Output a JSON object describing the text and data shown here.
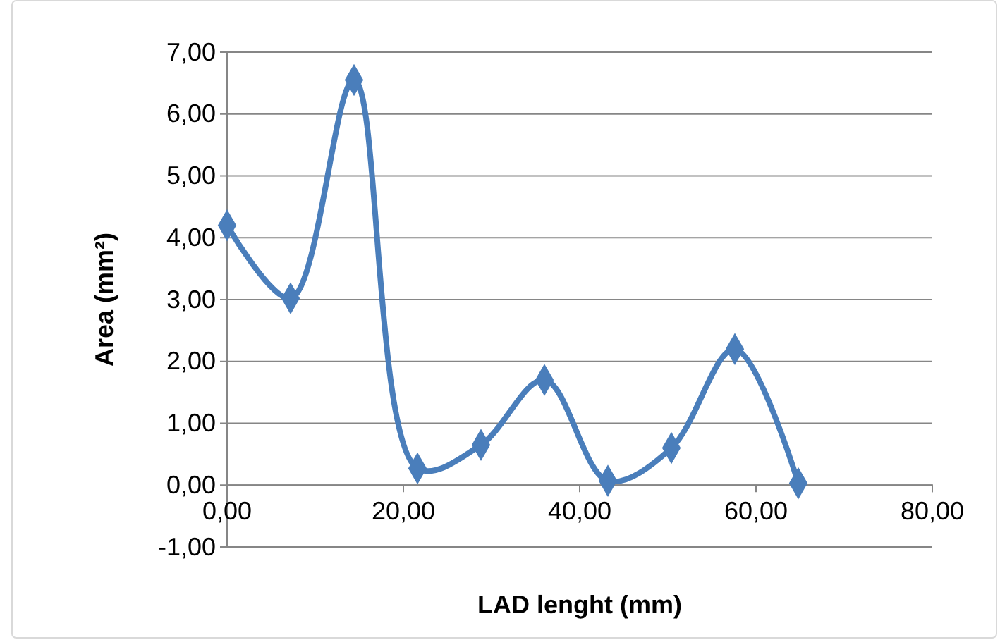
{
  "chart_data": {
    "type": "line",
    "xlabel": "LAD lenght (mm)",
    "ylabel": "Area (mm²)",
    "x": [
      0,
      7.2,
      14.4,
      21.6,
      28.8,
      36,
      43.2,
      50.4,
      57.6,
      64.8
    ],
    "series": [
      {
        "color": "#4a7ebb",
        "values": [
          4.2,
          3.02,
          6.55,
          0.27,
          0.65,
          1.7,
          0.07,
          0.6,
          2.2,
          0.03
        ]
      }
    ],
    "xlim": [
      0,
      80
    ],
    "ylim": [
      -1,
      7
    ],
    "xticks": [
      {
        "value": 0,
        "label": "0,00"
      },
      {
        "value": 20,
        "label": "20,00"
      },
      {
        "value": 40,
        "label": "40,00"
      },
      {
        "value": 60,
        "label": "60,00"
      },
      {
        "value": 80,
        "label": "80,00"
      }
    ],
    "yticks": [
      {
        "value": -1,
        "label": "-1,00"
      },
      {
        "value": 0,
        "label": "0,00"
      },
      {
        "value": 1,
        "label": "1,00"
      },
      {
        "value": 2,
        "label": "2,00"
      },
      {
        "value": 3,
        "label": "3,00"
      },
      {
        "value": 4,
        "label": "4,00"
      },
      {
        "value": 5,
        "label": "5,00"
      },
      {
        "value": 6,
        "label": "6,00"
      },
      {
        "value": 7,
        "label": "7,00"
      }
    ],
    "grid": "y",
    "marker": "diamond",
    "line_style": "solid"
  }
}
